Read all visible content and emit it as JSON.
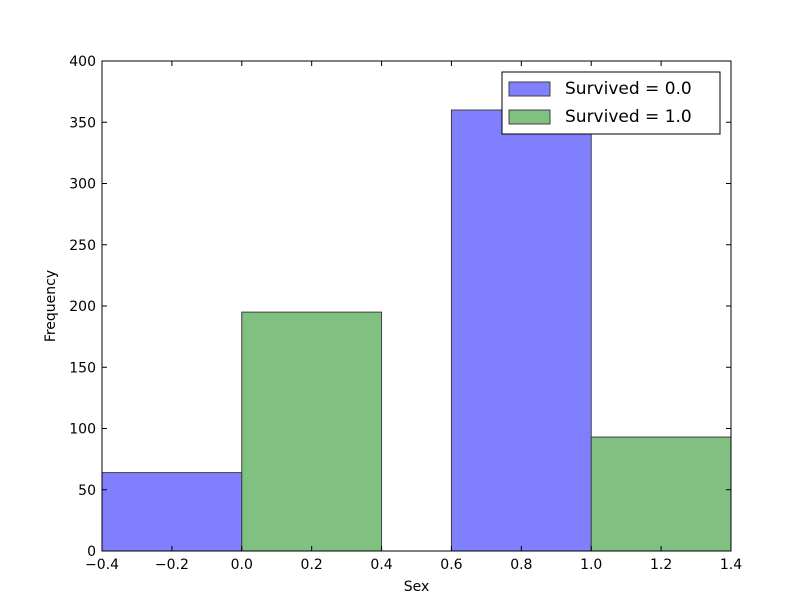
{
  "chart_data": {
    "type": "bar",
    "xlabel": "Sex",
    "ylabel": "Frequency",
    "xlim": [
      -0.4,
      1.4
    ],
    "ylim": [
      0,
      400
    ],
    "xticks": [
      "−0.4",
      "−0.2",
      "0.0",
      "0.2",
      "0.4",
      "0.6",
      "0.8",
      "1.0",
      "1.2",
      "1.4"
    ],
    "yticks": [
      "0",
      "50",
      "100",
      "150",
      "200",
      "250",
      "300",
      "350",
      "400"
    ],
    "grid": false,
    "legend_position": "top-right",
    "series": [
      {
        "name": "Survived = 0.0",
        "color": "#8080ff",
        "bars": [
          {
            "x0": -0.4,
            "x1": 0.0,
            "value": 64
          },
          {
            "x0": 0.6,
            "x1": 1.0,
            "value": 360
          }
        ]
      },
      {
        "name": "Survived = 1.0",
        "color": "#80c080",
        "bars": [
          {
            "x0": 0.0,
            "x1": 0.4,
            "value": 195
          },
          {
            "x0": 1.0,
            "x1": 1.4,
            "value": 93
          }
        ]
      }
    ]
  }
}
